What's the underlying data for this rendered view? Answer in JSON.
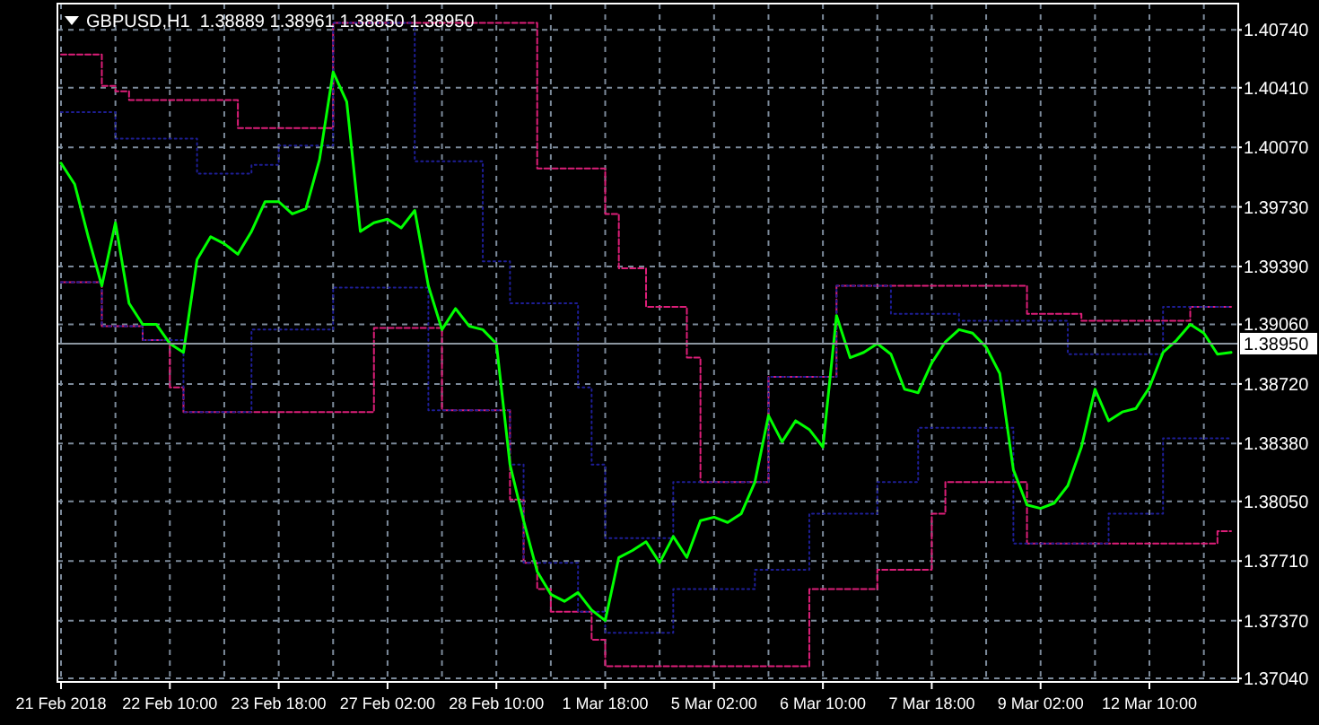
{
  "chart_data": {
    "type": "line",
    "title": "GBPUSD,H1  1.38889 1.38961 1.38850 1.38950",
    "categories": [
      "21 Feb 2018",
      null,
      null,
      null,
      null,
      null,
      null,
      null,
      "22 Feb 10:00",
      null,
      null,
      null,
      null,
      null,
      null,
      null,
      "23 Feb 18:00",
      null,
      null,
      null,
      null,
      null,
      null,
      null,
      "27 Feb 02:00",
      null,
      null,
      null,
      null,
      null,
      null,
      null,
      "28 Feb 10:00",
      null,
      null,
      null,
      null,
      null,
      null,
      null,
      "1 Mar 18:00",
      null,
      null,
      null,
      null,
      null,
      null,
      null,
      "5 Mar 02:00",
      null,
      null,
      null,
      null,
      null,
      null,
      null,
      "6 Mar 10:00",
      null,
      null,
      null,
      null,
      null,
      null,
      null,
      "7 Mar 18:00",
      null,
      null,
      null,
      null,
      null,
      null,
      null,
      "9 Mar 02:00",
      null,
      null,
      null,
      null,
      null,
      null,
      null,
      "12 Mar 10:00",
      null,
      null,
      null,
      null,
      null,
      null
    ],
    "series": [
      {
        "type": "step",
        "color": "#dc1e78",
        "line_style": "dashed",
        "values": [
          1.406,
          1.406,
          1.406,
          1.4042,
          1.4039,
          1.4034,
          1.4034,
          1.4034,
          1.4034,
          1.4034,
          1.4034,
          1.4034,
          1.4034,
          1.4018,
          1.4018,
          1.4018,
          1.4018,
          1.4018,
          1.4018,
          1.4018,
          1.4078,
          1.4078,
          1.4078,
          1.4078,
          1.4078,
          1.4078,
          1.4078,
          1.4078,
          1.4078,
          1.4078,
          1.4078,
          1.4078,
          1.4078,
          1.4078,
          1.4078,
          1.3995,
          1.3995,
          1.3995,
          1.3995,
          1.3995,
          1.3969,
          1.3938,
          1.3938,
          1.3916,
          1.3916,
          1.3916,
          1.3887,
          1.3816,
          1.3816,
          1.3816,
          1.3816,
          1.3816,
          1.3876,
          1.3876,
          1.3876,
          1.3876,
          1.3876,
          1.3928,
          1.3928,
          1.3928,
          1.3928,
          1.3928,
          1.3928,
          1.3928,
          1.3928,
          1.3928,
          1.3928,
          1.3928,
          1.3928,
          1.3928,
          1.3928,
          1.3912,
          1.3912,
          1.3912,
          1.3912,
          1.3908,
          1.3908,
          1.3908,
          1.3908,
          1.3908,
          1.3908,
          1.3908,
          1.3908,
          1.3916,
          1.3916,
          1.3916,
          1.3916
        ]
      },
      {
        "type": "step",
        "color": "#dc1e78",
        "line_style": "dashed",
        "values": [
          1.393,
          1.393,
          1.393,
          1.3905,
          1.3905,
          1.3905,
          1.3897,
          1.3897,
          1.387,
          1.3856,
          1.3856,
          1.3856,
          1.3856,
          1.3856,
          1.3856,
          1.3856,
          1.3856,
          1.3856,
          1.3856,
          1.3856,
          1.3856,
          1.3856,
          1.3856,
          1.3904,
          1.3904,
          1.3904,
          1.3904,
          1.3904,
          1.3857,
          1.3857,
          1.3857,
          1.3857,
          1.3857,
          1.3806,
          1.377,
          1.3755,
          1.3742,
          1.3742,
          1.3742,
          1.3726,
          1.3711,
          1.3711,
          1.3711,
          1.3711,
          1.3711,
          1.3711,
          1.3711,
          1.3711,
          1.3711,
          1.3711,
          1.3711,
          1.3711,
          1.3711,
          1.3711,
          1.3711,
          1.3755,
          1.3755,
          1.3755,
          1.3755,
          1.3755,
          1.3766,
          1.3766,
          1.3766,
          1.3766,
          1.3798,
          1.3816,
          1.3816,
          1.3816,
          1.3816,
          1.3816,
          1.3816,
          1.3781,
          1.3781,
          1.3781,
          1.3781,
          1.3781,
          1.3781,
          1.3781,
          1.3781,
          1.3781,
          1.3781,
          1.3781,
          1.3781,
          1.3781,
          1.3781,
          1.3788,
          1.3788
        ]
      },
      {
        "type": "step",
        "color": "#1e1e96",
        "line_style": "dotted",
        "values": [
          1.4027,
          1.4027,
          1.4027,
          1.4027,
          1.4012,
          1.4012,
          1.4012,
          1.4012,
          1.4012,
          1.4012,
          1.3992,
          1.3992,
          1.3992,
          1.3992,
          1.3997,
          1.3997,
          1.4008,
          1.4008,
          1.4008,
          1.4008,
          1.4078,
          1.4078,
          1.4078,
          1.4078,
          1.4078,
          1.4078,
          1.3999,
          1.3999,
          1.3999,
          1.3999,
          1.3999,
          1.3942,
          1.3942,
          1.3918,
          1.3918,
          1.3918,
          1.3918,
          1.3918,
          1.387,
          1.3826,
          1.3784,
          1.3784,
          1.3784,
          1.3784,
          1.3784,
          1.3816,
          1.3816,
          1.3816,
          1.3816,
          1.3816,
          1.3816,
          1.3816,
          1.3876,
          1.3876,
          1.3876,
          1.3876,
          1.3876,
          1.3928,
          1.3928,
          1.3928,
          1.3928,
          1.3912,
          1.3912,
          1.3912,
          1.3912,
          1.3912,
          1.3908,
          1.3908,
          1.3908,
          1.3908,
          1.3908,
          1.3908,
          1.3908,
          1.3908,
          1.3889,
          1.3889,
          1.3889,
          1.3889,
          1.3889,
          1.3889,
          1.3889,
          1.3916,
          1.3916,
          1.3916,
          1.3916,
          1.3916,
          1.3916
        ]
      },
      {
        "type": "step",
        "color": "#1e1e96",
        "line_style": "dotted",
        "values": [
          1.393,
          1.393,
          1.393,
          1.3905,
          1.3905,
          1.3905,
          1.3897,
          1.3897,
          1.3897,
          1.3856,
          1.3856,
          1.3856,
          1.3856,
          1.3856,
          1.3903,
          1.3903,
          1.3903,
          1.3903,
          1.3903,
          1.3903,
          1.3927,
          1.3927,
          1.3927,
          1.3927,
          1.3927,
          1.3927,
          1.3927,
          1.3857,
          1.3857,
          1.3857,
          1.3857,
          1.3857,
          1.3857,
          1.3826,
          1.377,
          1.377,
          1.377,
          1.377,
          1.3742,
          1.3742,
          1.373,
          1.373,
          1.373,
          1.373,
          1.373,
          1.3755,
          1.3755,
          1.3755,
          1.3755,
          1.3755,
          1.3755,
          1.3766,
          1.3766,
          1.3766,
          1.3766,
          1.3798,
          1.3798,
          1.3798,
          1.3798,
          1.3798,
          1.3816,
          1.3816,
          1.3816,
          1.3847,
          1.3847,
          1.3847,
          1.3847,
          1.3847,
          1.3847,
          1.3847,
          1.3781,
          1.3781,
          1.3781,
          1.3781,
          1.3781,
          1.3781,
          1.3781,
          1.3798,
          1.3798,
          1.3798,
          1.3798,
          1.3841,
          1.3841,
          1.3841,
          1.3841,
          1.3841,
          1.3841
        ]
      },
      {
        "type": "line",
        "color": "#00ff00",
        "line_style": "solid",
        "values": [
          1.3998,
          1.3986,
          1.3956,
          1.3928,
          1.3964,
          1.3918,
          1.3906,
          1.3906,
          1.3895,
          1.389,
          1.3943,
          1.3956,
          1.3952,
          1.3946,
          1.3959,
          1.3976,
          1.3976,
          1.3969,
          1.3972,
          1.4,
          1.405,
          1.4033,
          1.3959,
          1.3964,
          1.3966,
          1.3961,
          1.3971,
          1.3928,
          1.3903,
          1.3915,
          1.3905,
          1.3903,
          1.3895,
          1.3826,
          1.3794,
          1.3765,
          1.3752,
          1.3748,
          1.3753,
          1.3743,
          1.3737,
          1.3773,
          1.3777,
          1.3782,
          1.377,
          1.3785,
          1.3773,
          1.3794,
          1.3796,
          1.3793,
          1.3798,
          1.3816,
          1.3854,
          1.3839,
          1.3851,
          1.3846,
          1.3836,
          1.3911,
          1.3887,
          1.389,
          1.3895,
          1.3889,
          1.3869,
          1.3867,
          1.3884,
          1.3896,
          1.3903,
          1.3901,
          1.3893,
          1.3878,
          1.3823,
          1.3803,
          1.3801,
          1.3804,
          1.3814,
          1.3836,
          1.3869,
          1.3851,
          1.3856,
          1.3858,
          1.387,
          1.389,
          1.3897,
          1.3906,
          1.3901,
          1.3889,
          1.389
        ]
      }
    ],
    "ylim": [
      1.3702,
      1.4089
    ],
    "yticks": [
      {
        "value": 1.3704,
        "label": "1.37040"
      },
      {
        "value": 1.3737,
        "label": "1.37370"
      },
      {
        "value": 1.3771,
        "label": "1.37710"
      },
      {
        "value": 1.3805,
        "label": "1.38050"
      },
      {
        "value": 1.3838,
        "label": "1.38380"
      },
      {
        "value": 1.3872,
        "label": "1.38720"
      },
      {
        "value": 1.3906,
        "label": "1.39060"
      },
      {
        "value": 1.3939,
        "label": "1.39390"
      },
      {
        "value": 1.3973,
        "label": "1.39730"
      },
      {
        "value": 1.4007,
        "label": "1.40070"
      },
      {
        "value": 1.4041,
        "label": "1.40410"
      },
      {
        "value": 1.4074,
        "label": "1.40740"
      }
    ],
    "ref_lines": [
      {
        "axis": "y",
        "value": 1.3895,
        "label": "1.38950",
        "color": "#8c96a0"
      }
    ],
    "grid": true
  }
}
